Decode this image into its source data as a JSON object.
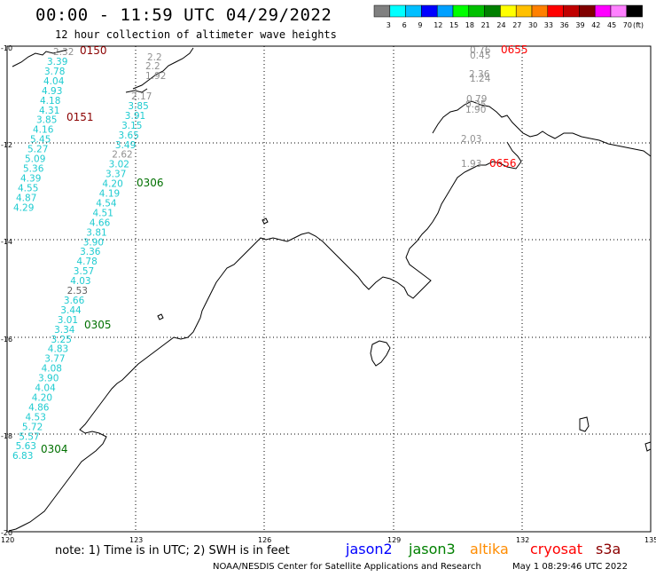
{
  "header": {
    "title": "00:00 - 11:59 UTC 04/29/2022",
    "subtitle": "12 hour collection of altimeter wave heights"
  },
  "colorbar": {
    "unit": "(ft)",
    "colors": [
      "#808080",
      "#00ffff",
      "#00bfff",
      "#0000ff",
      "#00a0ff",
      "#00ff00",
      "#00c000",
      "#008000",
      "#ffff00",
      "#ffc000",
      "#ff8000",
      "#ff0000",
      "#c00000",
      "#800000",
      "#ff00ff",
      "#ff80ff",
      "#000000"
    ],
    "labels": [
      "3",
      "6",
      "9",
      "12",
      "15",
      "18",
      "21",
      "24",
      "27",
      "30",
      "33",
      "36",
      "39",
      "42",
      "45",
      "70"
    ]
  },
  "axes": {
    "lon_ticks": [
      "120",
      "123",
      "126",
      "129",
      "132",
      "135"
    ],
    "lat_ticks": [
      "-10",
      "-12",
      "-14",
      "-16",
      "-18",
      "-20"
    ]
  },
  "track_a": [
    {
      "v": "3.39",
      "c": "#1ecbd0"
    },
    {
      "v": "3.78",
      "c": "#1ecbd0"
    },
    {
      "v": "4.04",
      "c": "#1ecbd0"
    },
    {
      "v": "4.93",
      "c": "#1ecbd0"
    },
    {
      "v": "4.18",
      "c": "#1ecbd0"
    },
    {
      "v": "4.31",
      "c": "#1ecbd0"
    },
    {
      "v": "3.85",
      "c": "#1ecbd0"
    },
    {
      "v": "4.16",
      "c": "#1ecbd0"
    },
    {
      "v": "5.45",
      "c": "#1ecbd0"
    },
    {
      "v": "5.27",
      "c": "#1ecbd0"
    },
    {
      "v": "5.09",
      "c": "#1ecbd0"
    },
    {
      "v": "5.36",
      "c": "#1ecbd0"
    },
    {
      "v": "4.39",
      "c": "#1ecbd0"
    },
    {
      "v": "4.55",
      "c": "#1ecbd0"
    },
    {
      "v": "4.87",
      "c": "#1ecbd0"
    },
    {
      "v": "4.29",
      "c": "#1ecbd0"
    }
  ],
  "track_a_top": "2.32",
  "track_b": [
    {
      "v": "2.17",
      "c": "#909090"
    },
    {
      "v": "3.85",
      "c": "#1ecbd0"
    },
    {
      "v": "3.91",
      "c": "#1ecbd0"
    },
    {
      "v": "3.15",
      "c": "#1ecbd0"
    },
    {
      "v": "3.65",
      "c": "#1ecbd0"
    },
    {
      "v": "3.49",
      "c": "#1ecbd0"
    },
    {
      "v": "2.62",
      "c": "#909090"
    },
    {
      "v": "3.02",
      "c": "#1ecbd0"
    },
    {
      "v": "3.37",
      "c": "#1ecbd0"
    },
    {
      "v": "4.20",
      "c": "#1ecbd0"
    },
    {
      "v": "4.19",
      "c": "#1ecbd0"
    },
    {
      "v": "4.54",
      "c": "#1ecbd0"
    },
    {
      "v": "4.51",
      "c": "#1ecbd0"
    },
    {
      "v": "4.66",
      "c": "#1ecbd0"
    },
    {
      "v": "3.81",
      "c": "#1ecbd0"
    },
    {
      "v": "3.90",
      "c": "#1ecbd0"
    },
    {
      "v": "3.36",
      "c": "#1ecbd0"
    },
    {
      "v": "4.78",
      "c": "#1ecbd0"
    },
    {
      "v": "3.57",
      "c": "#1ecbd0"
    },
    {
      "v": "4.03",
      "c": "#1ecbd0"
    },
    {
      "v": "2.53",
      "c": "#606060"
    },
    {
      "v": "3.66",
      "c": "#1ecbd0"
    },
    {
      "v": "3.44",
      "c": "#1ecbd0"
    },
    {
      "v": "3.01",
      "c": "#1ecbd0"
    },
    {
      "v": "3.34",
      "c": "#1ecbd0"
    },
    {
      "v": "3.25",
      "c": "#1ecbd0"
    },
    {
      "v": "4.83",
      "c": "#1ecbd0"
    },
    {
      "v": "3.77",
      "c": "#1ecbd0"
    },
    {
      "v": "4.08",
      "c": "#1ecbd0"
    },
    {
      "v": "3.90",
      "c": "#1ecbd0"
    },
    {
      "v": "4.04",
      "c": "#1ecbd0"
    },
    {
      "v": "4.20",
      "c": "#1ecbd0"
    },
    {
      "v": "4.86",
      "c": "#1ecbd0"
    },
    {
      "v": "4.53",
      "c": "#1ecbd0"
    },
    {
      "v": "5.72",
      "c": "#1ecbd0"
    },
    {
      "v": "5.57",
      "c": "#1ecbd0"
    },
    {
      "v": "5.63",
      "c": "#1ecbd0"
    },
    {
      "v": "6.83",
      "c": "#1ecbd0"
    }
  ],
  "track_b_top": [
    "2.2",
    "2.2",
    "1.92"
  ],
  "track_c": [
    {
      "v": "0.76"
    },
    {
      "v": "0.45"
    },
    {
      "v": "2.36"
    },
    {
      "v": "1.24"
    },
    {
      "v": "0.79"
    },
    {
      "v": "0.35"
    },
    {
      "v": "1.90"
    },
    {
      "v": "2.03"
    },
    {
      "v": "1.93"
    }
  ],
  "time_labels": [
    {
      "t": "0150",
      "c": "#8b0000"
    },
    {
      "t": "0151",
      "c": "#8b0000"
    },
    {
      "t": "0306",
      "c": "#007000"
    },
    {
      "t": "0305",
      "c": "#007000"
    },
    {
      "t": "0304",
      "c": "#007000"
    },
    {
      "t": "0655",
      "c": "#ff0000"
    },
    {
      "t": "0656",
      "c": "#ff0000"
    }
  ],
  "footer": {
    "note": "note: 1) Time is in UTC; 2) SWH is in feet",
    "satellites": [
      {
        "name": "jason2",
        "color": "#0000ff"
      },
      {
        "name": "jason3",
        "color": "#008000"
      },
      {
        "name": "altika",
        "color": "#ff8c00"
      },
      {
        "name": "cryosat",
        "color": "#ff0000"
      },
      {
        "name": "s3a",
        "color": "#8b0000"
      }
    ],
    "credit": "NOAA/NESDIS Center for Satellite Applications and Research",
    "timestamp": "May  1 08:29:46 UTC 2022"
  }
}
